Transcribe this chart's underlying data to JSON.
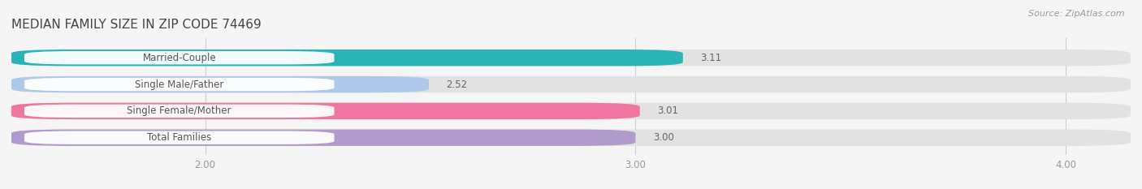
{
  "title": "MEDIAN FAMILY SIZE IN ZIP CODE 74469",
  "source": "Source: ZipAtlas.com",
  "categories": [
    "Married-Couple",
    "Single Male/Father",
    "Single Female/Mother",
    "Total Families"
  ],
  "values": [
    3.11,
    2.52,
    3.01,
    3.0
  ],
  "bar_colors": [
    "#29b5b5",
    "#afc8ea",
    "#f075a0",
    "#b09bcc"
  ],
  "background_color": "#f5f5f5",
  "bar_bg_color": "#e2e2e2",
  "xlim_left": 1.55,
  "xlim_right": 4.15,
  "xticks": [
    2.0,
    3.0,
    4.0
  ],
  "xtick_labels": [
    "2.00",
    "3.00",
    "4.00"
  ],
  "title_fontsize": 11,
  "label_fontsize": 8.5,
  "value_fontsize": 8.5,
  "source_fontsize": 8
}
